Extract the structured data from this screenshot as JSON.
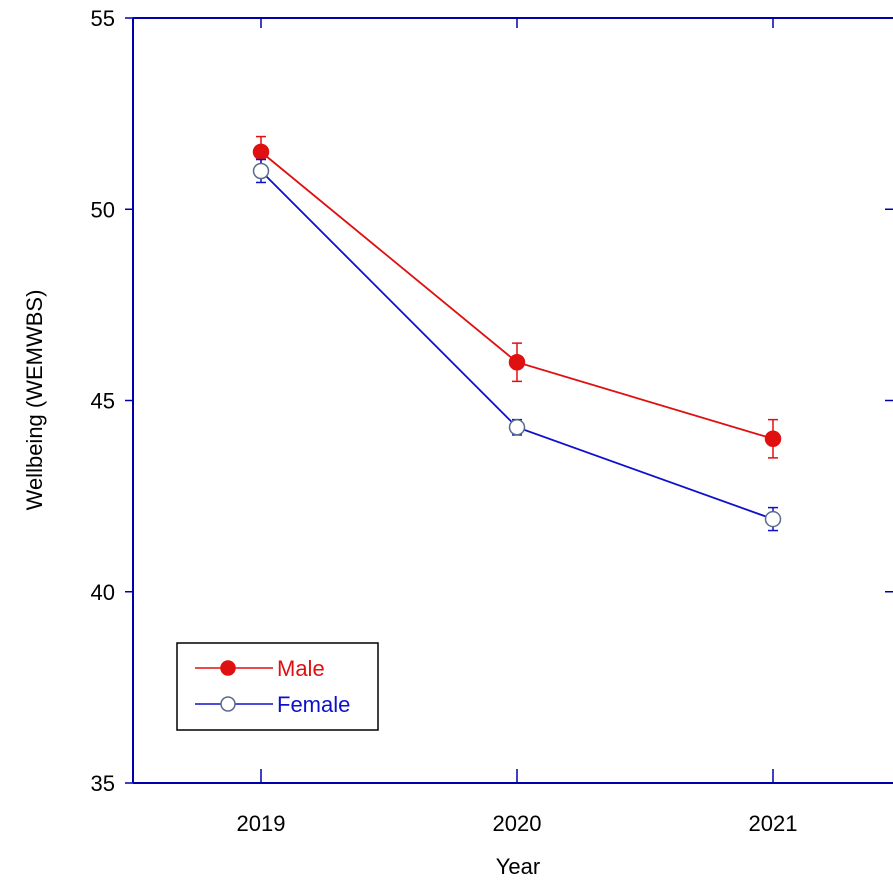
{
  "chart_data": {
    "type": "line",
    "title": "",
    "xlabel": "Year",
    "ylabel": "Wellbeing (WEMWBS)",
    "categories": [
      "2019",
      "2020",
      "2021"
    ],
    "ylim": [
      35,
      55
    ],
    "yticks": [
      35,
      40,
      45,
      50,
      55
    ],
    "ytick_labels": [
      "35",
      "40",
      "45",
      "50",
      "55"
    ],
    "grid": false,
    "legend_position": "bottom-left",
    "axis_color": "#0000aa",
    "series": [
      {
        "name": "Male",
        "color": "#e01010",
        "marker": "filled-circle",
        "values": [
          51.5,
          46.0,
          44.0
        ],
        "error": [
          0.4,
          0.5,
          0.5
        ]
      },
      {
        "name": "Female",
        "color": "#1010cc",
        "marker": "open-circle",
        "values": [
          51.0,
          44.3,
          41.9
        ],
        "error": [
          0.3,
          0.2,
          0.3
        ]
      }
    ]
  }
}
